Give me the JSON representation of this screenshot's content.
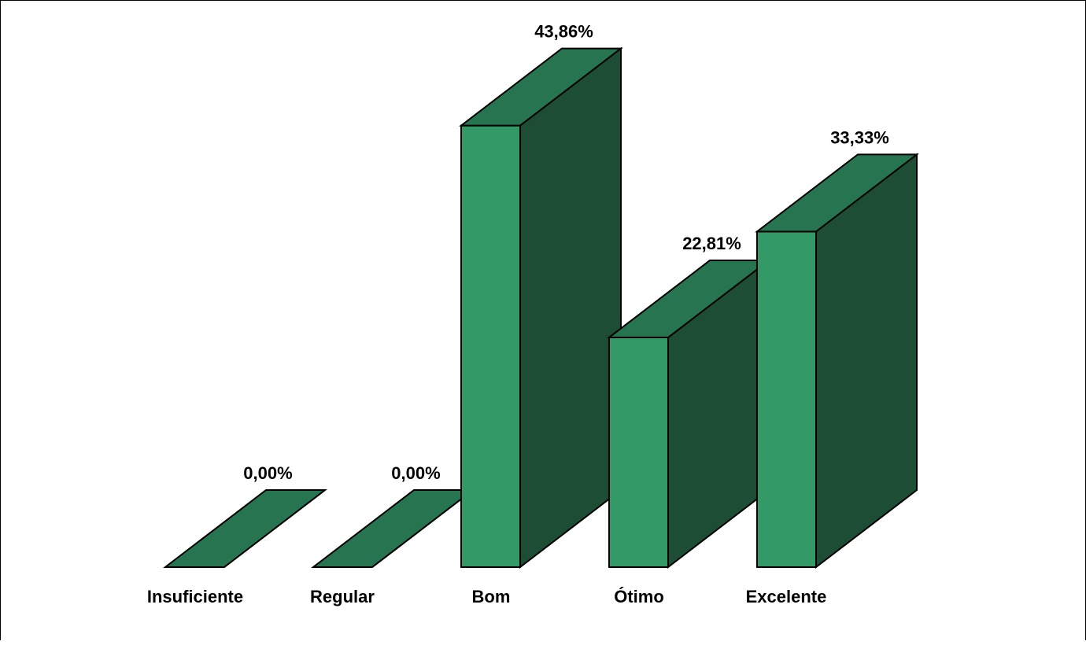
{
  "chart_data": {
    "type": "bar",
    "style": "3d",
    "title": "",
    "xlabel": "",
    "ylabel": "",
    "categories": [
      "Insuficiente",
      "Regular",
      "Bom",
      "Ótimo",
      "Excelente"
    ],
    "values": [
      0.0,
      0.0,
      43.86,
      22.81,
      33.33
    ],
    "value_labels": [
      "0,00%",
      "0,00%",
      "43,86%",
      "22,81%",
      "33,33%"
    ],
    "ylim": [
      0,
      45
    ],
    "grid": false,
    "legend": "none",
    "colors": {
      "front": "#339966",
      "top": "#267550",
      "side": "#1e4d36",
      "outline": "#000000"
    }
  }
}
